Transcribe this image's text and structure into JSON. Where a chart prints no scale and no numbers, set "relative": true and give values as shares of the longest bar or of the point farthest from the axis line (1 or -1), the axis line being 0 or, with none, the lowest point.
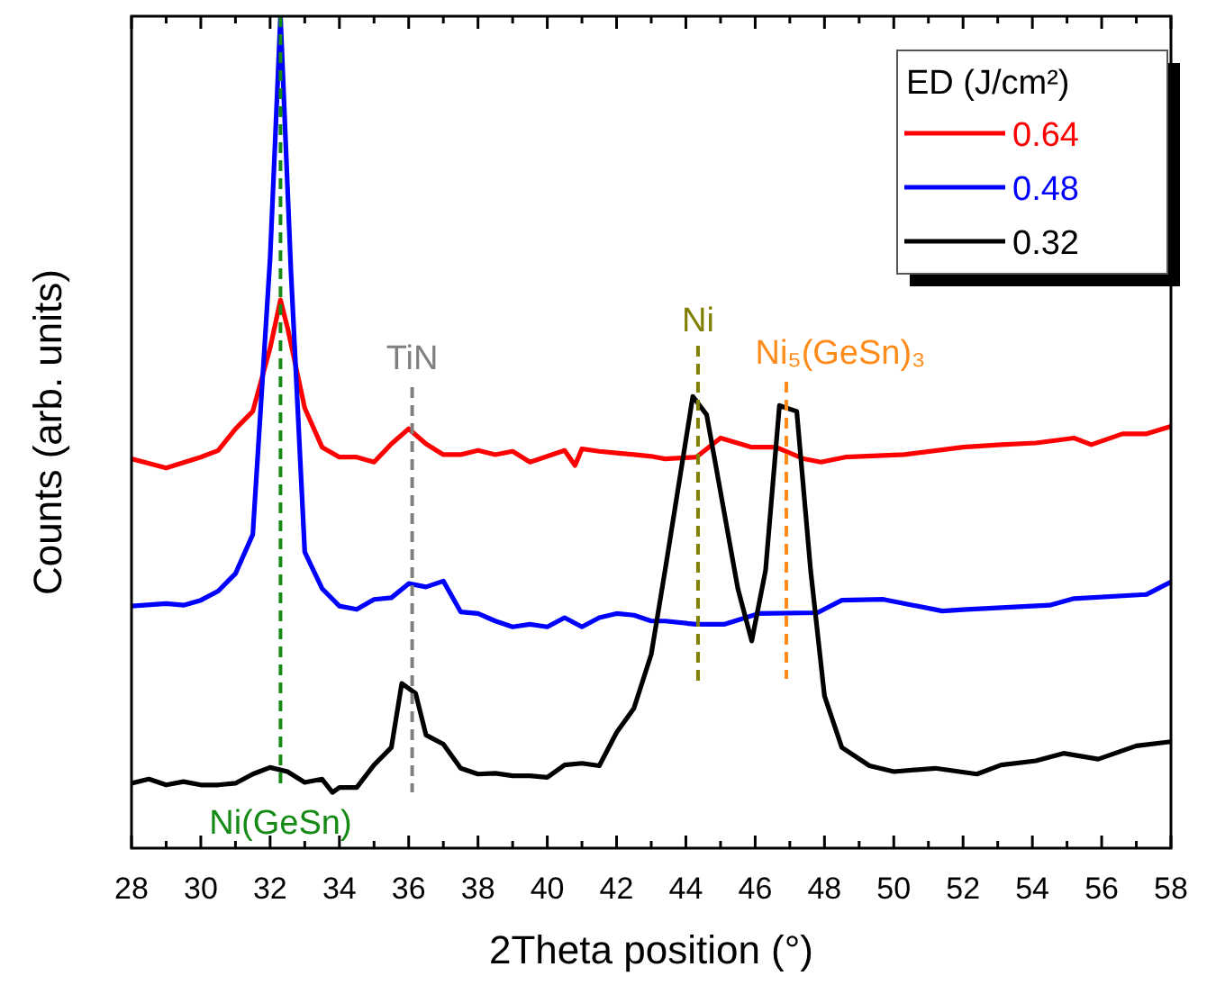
{
  "chart_data": {
    "type": "line",
    "relative": true,
    "xlabel": "2Theta position (°)",
    "ylabel": "Counts (arb. units)",
    "legend_title": "ED (J/cm²)",
    "legend": "top right",
    "line_style": "solid",
    "marker": "none",
    "grid": false,
    "xlim": [
      28,
      58
    ],
    "xticks": [
      28,
      {
        "value": 29,
        "label": null
      },
      30,
      {
        "value": 31,
        "label": null
      },
      32,
      {
        "value": 33,
        "label": null
      },
      34,
      {
        "value": 35,
        "label": null
      },
      36,
      {
        "value": 37,
        "label": null
      },
      38,
      {
        "value": 39,
        "label": null
      },
      40,
      {
        "value": 41,
        "label": null
      },
      42,
      {
        "value": 43,
        "label": null
      },
      44,
      {
        "value": 45,
        "label": null
      },
      46,
      {
        "value": 47,
        "label": null
      },
      48,
      {
        "value": 49,
        "label": null
      },
      50,
      {
        "value": 51,
        "label": null
      },
      52,
      {
        "value": 53,
        "label": null
      },
      54,
      {
        "value": 55,
        "label": null
      },
      56,
      {
        "value": 57,
        "label": null
      },
      58
    ],
    "series": [
      {
        "name": "0.64",
        "color": "#ff0000",
        "x": [
          28,
          29,
          30,
          30.5,
          31,
          31.5,
          32,
          32.3,
          32.5,
          33,
          33.5,
          34,
          34.5,
          35,
          35.5,
          36,
          36.5,
          37,
          37.5,
          38,
          38.5,
          39,
          39.5,
          40,
          40.5,
          40.8,
          41,
          41.5,
          42,
          42.5,
          43,
          43.4,
          44.3,
          45,
          45.9,
          46.6,
          47.4,
          47.9,
          48.6,
          50.3,
          52,
          53.1,
          54.1,
          55.2,
          55.7,
          56.6,
          57.3,
          58
        ],
        "values": [
          0.468,
          0.457,
          0.47,
          0.478,
          0.504,
          0.525,
          0.601,
          0.659,
          0.626,
          0.529,
          0.482,
          0.47,
          0.47,
          0.464,
          0.486,
          0.504,
          0.486,
          0.473,
          0.473,
          0.478,
          0.473,
          0.477,
          0.464,
          0.471,
          0.478,
          0.46,
          0.48,
          0.477,
          0.475,
          0.473,
          0.471,
          0.468,
          0.47,
          0.493,
          0.482,
          0.482,
          0.468,
          0.464,
          0.47,
          0.473,
          0.482,
          0.485,
          0.487,
          0.493,
          0.485,
          0.498,
          0.498,
          0.507
        ]
      },
      {
        "name": "0.48",
        "color": "#0000ff",
        "x": [
          28,
          29,
          29.5,
          30,
          30.5,
          31,
          31.5,
          32,
          32.3,
          32.6,
          33,
          33.5,
          34,
          34.5,
          35,
          35.5,
          36,
          36.5,
          37,
          37.5,
          38,
          38.5,
          39,
          39.5,
          40,
          40.5,
          41,
          41.5,
          42,
          42.5,
          43,
          43.4,
          44.3,
          45.1,
          46.1,
          47.8,
          48.5,
          49.7,
          51.4,
          52.1,
          54.5,
          55.2,
          57.3,
          58
        ],
        "values": [
          0.291,
          0.294,
          0.292,
          0.298,
          0.309,
          0.33,
          0.377,
          0.709,
          1,
          0.695,
          0.356,
          0.312,
          0.291,
          0.287,
          0.299,
          0.301,
          0.318,
          0.314,
          0.321,
          0.284,
          0.282,
          0.273,
          0.266,
          0.269,
          0.266,
          0.277,
          0.266,
          0.277,
          0.282,
          0.28,
          0.273,
          0.273,
          0.269,
          0.269,
          0.282,
          0.283,
          0.298,
          0.299,
          0.285,
          0.287,
          0.292,
          0.3,
          0.305,
          0.32
        ]
      },
      {
        "name": "0.32",
        "color": "#000000",
        "x": [
          28,
          28.5,
          29,
          29.5,
          30,
          30.5,
          31,
          31.5,
          32,
          32.5,
          33,
          33.5,
          33.8,
          34,
          34.5,
          35,
          35.5,
          35.8,
          36.2,
          36.5,
          37,
          37.5,
          38,
          38.5,
          39,
          39.5,
          40,
          40.5,
          41,
          41.5,
          42,
          42.5,
          43,
          43.4,
          44.2,
          44.6,
          45.5,
          45.9,
          46.3,
          46.7,
          47.2,
          47.6,
          48,
          48.5,
          49.3,
          50,
          51.2,
          52.4,
          53.1,
          54.1,
          54.9,
          55.9,
          57,
          58
        ],
        "values": [
          0.078,
          0.083,
          0.076,
          0.08,
          0.076,
          0.076,
          0.078,
          0.089,
          0.097,
          0.092,
          0.079,
          0.083,
          0.067,
          0.073,
          0.073,
          0.1,
          0.121,
          0.198,
          0.186,
          0.136,
          0.125,
          0.096,
          0.089,
          0.09,
          0.087,
          0.087,
          0.085,
          0.1,
          0.102,
          0.099,
          0.139,
          0.168,
          0.233,
          0.334,
          0.543,
          0.521,
          0.312,
          0.249,
          0.334,
          0.532,
          0.525,
          0.334,
          0.183,
          0.121,
          0.099,
          0.092,
          0.096,
          0.089,
          0.1,
          0.105,
          0.114,
          0.107,
          0.123,
          0.128
        ]
      }
    ],
    "ref_lines": [
      {
        "axis": "x",
        "value": 32.3,
        "label": "Ni(GeSn)",
        "color": "#158a15",
        "line_style": "dashed"
      },
      {
        "axis": "x",
        "value": 36.1,
        "label": "TiN",
        "color": "#808080",
        "line_style": "dashed"
      },
      {
        "axis": "x",
        "value": 44.35,
        "label": "Ni",
        "color": "#808000",
        "line_style": "dashed"
      },
      {
        "axis": "x",
        "value": 46.9,
        "label": "Ni₅(GeSn)₃",
        "color": "#ff8c1a",
        "line_style": "dashed"
      }
    ]
  }
}
